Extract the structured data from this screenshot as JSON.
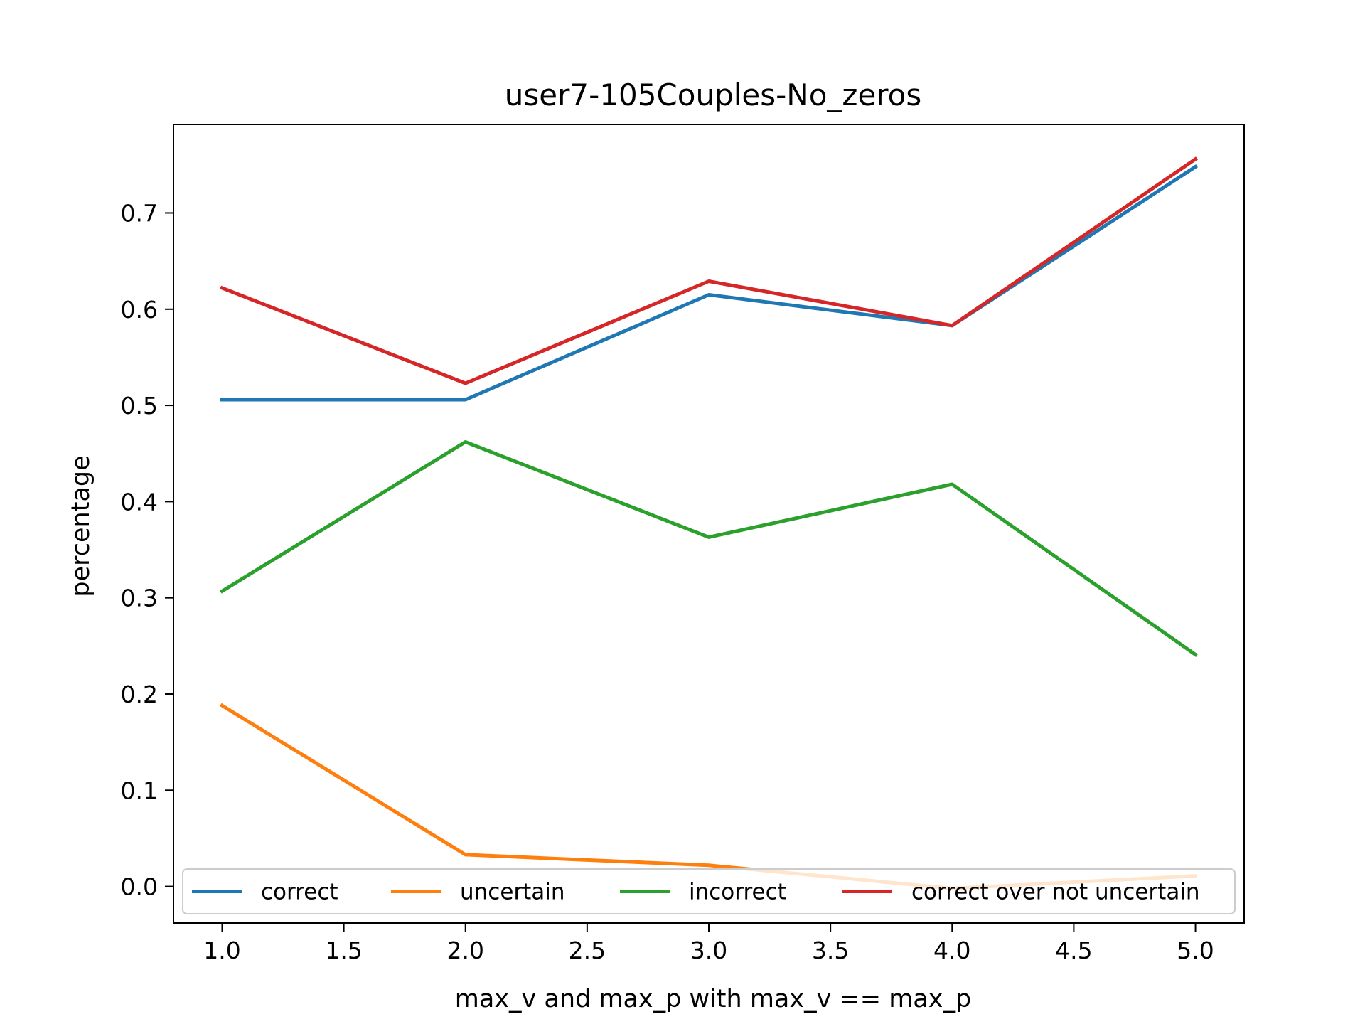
{
  "chart_data": {
    "type": "line",
    "title": "user7-105Couples-No_zeros",
    "xlabel": "max_v and max_p with max_v == max_p",
    "ylabel": "percentage",
    "x": [
      1.0,
      2.0,
      3.0,
      4.0,
      5.0
    ],
    "xlim": [
      0.8,
      5.2
    ],
    "ylim": [
      -0.038,
      0.792
    ],
    "xticks": [
      "1.0",
      "1.5",
      "2.0",
      "2.5",
      "3.0",
      "3.5",
      "4.0",
      "4.5",
      "5.0"
    ],
    "yticks": [
      "0.0",
      "0.1",
      "0.2",
      "0.3",
      "0.4",
      "0.5",
      "0.6",
      "0.7"
    ],
    "grid": false,
    "legend_placement": "lower-center",
    "series": [
      {
        "name": "correct",
        "color": "#1f77b4",
        "values": [
          0.506,
          0.506,
          0.615,
          0.583,
          0.748
        ]
      },
      {
        "name": "uncertain",
        "color": "#ff7f0e",
        "values": [
          0.188,
          0.033,
          0.022,
          -0.002,
          0.011
        ]
      },
      {
        "name": "incorrect",
        "color": "#2ca02c",
        "values": [
          0.307,
          0.462,
          0.363,
          0.418,
          0.241
        ]
      },
      {
        "name": "correct over not uncertain",
        "color": "#d62728",
        "values": [
          0.622,
          0.523,
          0.629,
          0.583,
          0.756
        ]
      }
    ]
  }
}
